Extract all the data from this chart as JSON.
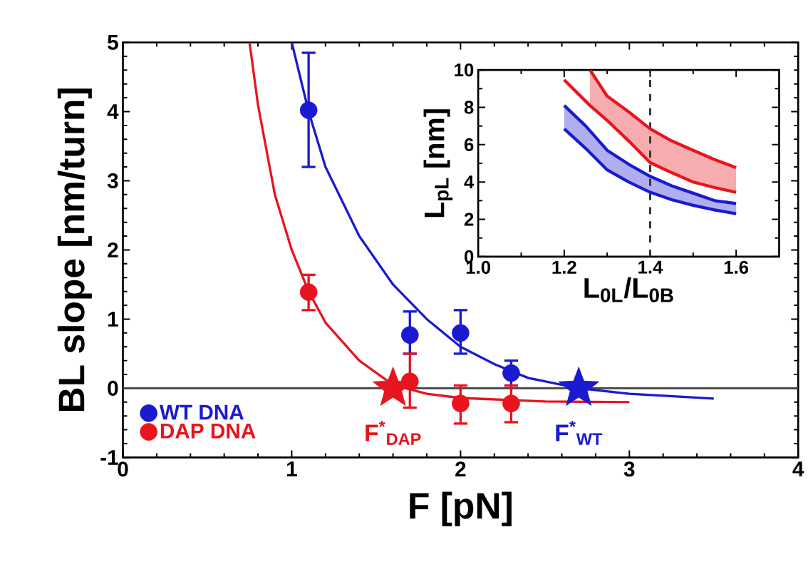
{
  "chart_data": [
    {
      "type": "scatter",
      "xlabel": "F [pN]",
      "ylabel": "BL slope [nm/turn]",
      "xlim": [
        0,
        4
      ],
      "ylim": [
        -1,
        5
      ],
      "xticks": [
        0,
        1,
        2,
        3,
        4
      ],
      "yticks": [
        -1,
        0,
        1,
        2,
        3,
        4,
        5
      ],
      "legend": "bottom left",
      "grid": false,
      "series": [
        {
          "type": "line",
          "color": "#1a1ad0",
          "x": [
            1.0,
            1.1,
            1.2,
            1.4,
            1.6,
            1.8,
            2.0,
            2.2,
            2.4,
            2.7,
            3.0,
            3.5
          ],
          "values": [
            5,
            4.0,
            3.2,
            2.2,
            1.5,
            1.0,
            0.6,
            0.35,
            0.15,
            0.0,
            -0.08,
            -0.15
          ]
        },
        {
          "type": "line",
          "color": "#e8141e",
          "x": [
            0.75,
            0.8,
            0.9,
            1.0,
            1.1,
            1.2,
            1.4,
            1.6,
            1.8,
            2.0,
            2.5,
            3.0
          ],
          "values": [
            5,
            4.1,
            2.8,
            2.0,
            1.4,
            0.95,
            0.4,
            0.05,
            -0.08,
            -0.14,
            -0.19,
            -0.2
          ]
        },
        {
          "name": "WT DNA",
          "color": "#1a1ad0",
          "marker": "circle",
          "x": [
            1.1,
            1.7,
            2.0,
            2.3
          ],
          "values": [
            4.02,
            0.77,
            0.8,
            0.22
          ],
          "errors": [
            [
              3.2,
              4.85
            ],
            [
              0.5,
              1.11
            ],
            [
              0.5,
              1.13
            ],
            [
              0.04,
              0.4
            ]
          ]
        },
        {
          "name": "DAP DNA",
          "color": "#e8141e",
          "marker": "circle",
          "x": [
            1.1,
            1.7,
            2.0,
            2.3
          ],
          "values": [
            1.39,
            0.1,
            -0.22,
            -0.22
          ],
          "errors": [
            [
              1.13,
              1.64
            ],
            [
              -0.28,
              0.5
            ],
            [
              -0.51,
              0.04
            ],
            [
              -0.49,
              0.04
            ]
          ]
        },
        {
          "color": "#e8141e",
          "marker": "star",
          "x": [
            1.6
          ],
          "values": [
            0
          ]
        },
        {
          "color": "#1a1ad0",
          "marker": "star",
          "x": [
            2.7
          ],
          "values": [
            0
          ]
        }
      ],
      "ref_lines": [
        {
          "axis": "y",
          "value": 0,
          "color": "#444444"
        }
      ],
      "annotations": [
        {
          "text": "F$^{*}$$_{DAP}$",
          "x": 1.6,
          "y": 0
        },
        {
          "text": "F$^{*}$$_{WT}$",
          "x": 2.7,
          "y": 0
        }
      ]
    },
    {
      "type": "line",
      "xlabel": "L$_{0L}$/L$_{0B}$",
      "ylabel": "L$_{pL}$ [nm]",
      "xlim": [
        1.0,
        1.7
      ],
      "ylim": [
        0,
        10
      ],
      "xticks": [
        {
          "value": 1.0,
          "label": "1.0"
        },
        1.2,
        1.4,
        1.6
      ],
      "yticks": [
        0,
        2,
        4,
        6,
        8,
        10
      ],
      "grid": false,
      "series": [
        {
          "color": "#e8141e",
          "x": [
            1.2,
            1.26,
            1.3,
            1.35,
            1.4,
            1.45,
            1.5,
            1.55,
            1.6
          ],
          "values": [
            9.47,
            8.1,
            7.3,
            6.2,
            5.04,
            4.5,
            4.0,
            3.7,
            3.45
          ]
        },
        {
          "color": "#e8141e",
          "x": [
            1.26,
            1.3,
            1.35,
            1.4,
            1.45,
            1.5,
            1.55,
            1.6
          ],
          "values": [
            10,
            8.6,
            7.76,
            6.85,
            6.2,
            5.7,
            5.2,
            4.77
          ],
          "lower": [
            8.1,
            7.3,
            6.2,
            5.04,
            4.5,
            4.0,
            3.7,
            3.45
          ],
          "upper": [
            10,
            8.6,
            7.76,
            6.85,
            6.2,
            5.7,
            5.2,
            4.77
          ]
        },
        {
          "color": "#1a1ad0",
          "x": [
            1.2,
            1.25,
            1.3,
            1.35,
            1.4,
            1.45,
            1.5,
            1.55,
            1.6
          ],
          "values": [
            6.85,
            5.8,
            4.65,
            4.0,
            3.45,
            3.05,
            2.75,
            2.5,
            2.3
          ]
        },
        {
          "color": "#1a1ad0",
          "x": [
            1.2,
            1.25,
            1.3,
            1.35,
            1.4,
            1.45,
            1.5,
            1.55,
            1.6
          ],
          "values": [
            8.1,
            7.0,
            5.7,
            4.95,
            4.3,
            3.8,
            3.4,
            3.0,
            2.85
          ],
          "lower": [
            6.85,
            5.8,
            4.65,
            4.0,
            3.45,
            3.05,
            2.75,
            2.5,
            2.3
          ],
          "upper": [
            8.1,
            7.0,
            5.7,
            4.95,
            4.3,
            3.8,
            3.4,
            3.0,
            2.85
          ]
        }
      ],
      "ref_lines": [
        {
          "axis": "x",
          "value": 1.4,
          "color": "#333333",
          "line_style": "dashed"
        }
      ]
    }
  ]
}
